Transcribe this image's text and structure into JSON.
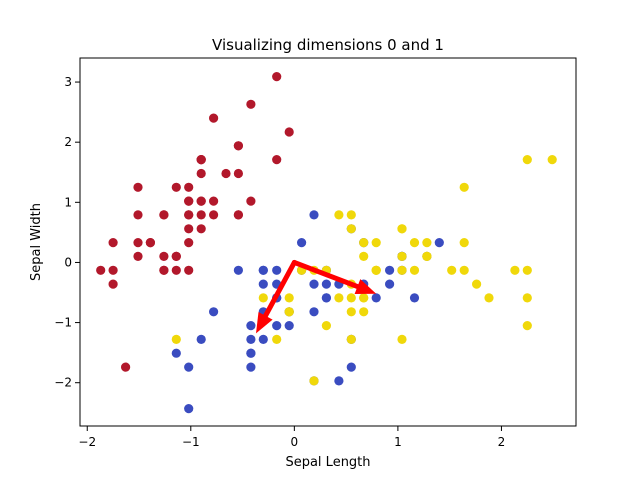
{
  "chart_data": {
    "type": "scatter",
    "title": "Visualizing dimensions 0 and 1",
    "xlabel": "Sepal Length",
    "ylabel": "Sepal Width",
    "xlim": [
      -2.07,
      2.72
    ],
    "ylim": [
      -2.72,
      3.4
    ],
    "xticks": [
      -2,
      -1,
      0,
      1,
      2
    ],
    "yticks": [
      -2,
      -1,
      0,
      1,
      2,
      3
    ],
    "grid": false,
    "legend": "none",
    "series": [
      {
        "color": "#b2182b",
        "points": [
          [
            -0.9,
            1.02
          ],
          [
            -1.14,
            -0.13
          ],
          [
            -1.39,
            0.33
          ],
          [
            -1.51,
            0.1
          ],
          [
            -1.02,
            1.25
          ],
          [
            -0.54,
            1.94
          ],
          [
            -1.51,
            0.79
          ],
          [
            -1.02,
            0.79
          ],
          [
            -1.75,
            -0.36
          ],
          [
            -1.14,
            0.1
          ],
          [
            -0.54,
            1.48
          ],
          [
            -1.26,
            0.79
          ],
          [
            -1.26,
            -0.13
          ],
          [
            -1.87,
            -0.13
          ],
          [
            -0.05,
            2.17
          ],
          [
            -0.17,
            3.09
          ],
          [
            -0.54,
            1.94
          ],
          [
            -0.9,
            1.02
          ],
          [
            -0.17,
            1.71
          ],
          [
            -0.9,
            1.71
          ],
          [
            -0.54,
            0.79
          ],
          [
            -0.9,
            1.48
          ],
          [
            -1.51,
            1.25
          ],
          [
            -0.9,
            0.56
          ],
          [
            -1.26,
            0.79
          ],
          [
            -1.02,
            -0.13
          ],
          [
            -1.02,
            0.79
          ],
          [
            -0.78,
            1.02
          ],
          [
            -0.78,
            0.79
          ],
          [
            -1.39,
            0.33
          ],
          [
            -1.26,
            0.1
          ],
          [
            -0.54,
            0.79
          ],
          [
            -0.78,
            2.4
          ],
          [
            -0.42,
            2.63
          ],
          [
            -1.14,
            0.1
          ],
          [
            -1.02,
            0.33
          ],
          [
            -0.42,
            1.02
          ],
          [
            -1.14,
            1.25
          ],
          [
            -1.75,
            -0.13
          ],
          [
            -0.9,
            0.79
          ],
          [
            -1.02,
            1.02
          ],
          [
            -1.63,
            -1.74
          ],
          [
            -1.75,
            0.33
          ],
          [
            -1.02,
            1.02
          ],
          [
            -0.9,
            1.71
          ],
          [
            -1.26,
            -0.13
          ],
          [
            -0.9,
            1.71
          ],
          [
            -1.51,
            0.33
          ],
          [
            -0.66,
            1.48
          ],
          [
            -1.02,
            0.56
          ]
        ]
      },
      {
        "color": "#3a4cc0",
        "points": [
          [
            1.4,
            0.33
          ],
          [
            0.67,
            0.33
          ],
          [
            1.28,
            0.1
          ],
          [
            -0.42,
            -1.74
          ],
          [
            0.79,
            -0.59
          ],
          [
            -0.17,
            -0.59
          ],
          [
            0.55,
            0.56
          ],
          [
            -1.14,
            -1.51
          ],
          [
            0.92,
            -0.36
          ],
          [
            -0.78,
            -0.82
          ],
          [
            -1.02,
            -2.43
          ],
          [
            0.07,
            -0.13
          ],
          [
            0.19,
            -1.97
          ],
          [
            0.31,
            -0.36
          ],
          [
            -0.3,
            -0.36
          ],
          [
            1.04,
            0.1
          ],
          [
            -0.3,
            -0.13
          ],
          [
            -0.05,
            -0.82
          ],
          [
            0.43,
            -1.97
          ],
          [
            -0.3,
            -1.28
          ],
          [
            0.07,
            0.33
          ],
          [
            0.31,
            -0.59
          ],
          [
            0.55,
            -1.28
          ],
          [
            0.31,
            -0.59
          ],
          [
            0.67,
            -0.36
          ],
          [
            0.92,
            -0.13
          ],
          [
            1.16,
            -0.59
          ],
          [
            1.04,
            -0.13
          ],
          [
            0.19,
            -0.36
          ],
          [
            -0.17,
            -1.05
          ],
          [
            -0.42,
            -1.51
          ],
          [
            -0.42,
            -1.51
          ],
          [
            -0.05,
            -0.82
          ],
          [
            0.19,
            -0.82
          ],
          [
            -0.54,
            -0.13
          ],
          [
            0.19,
            0.79
          ],
          [
            1.04,
            0.1
          ],
          [
            0.55,
            -1.74
          ],
          [
            -0.3,
            -0.13
          ],
          [
            -0.42,
            -1.28
          ],
          [
            -0.42,
            -1.05
          ],
          [
            0.31,
            -0.13
          ],
          [
            -0.05,
            -1.05
          ],
          [
            -1.02,
            -1.74
          ],
          [
            -0.3,
            -0.82
          ],
          [
            -0.17,
            -0.13
          ],
          [
            -0.17,
            -0.36
          ],
          [
            0.43,
            -0.36
          ],
          [
            -0.9,
            -1.28
          ],
          [
            -0.17,
            -0.59
          ]
        ]
      },
      {
        "color": "#f0d80a",
        "points": [
          [
            0.55,
            0.56
          ],
          [
            -0.05,
            -0.82
          ],
          [
            1.52,
            -0.13
          ],
          [
            0.55,
            -0.36
          ],
          [
            0.79,
            -0.13
          ],
          [
            2.13,
            -0.13
          ],
          [
            -1.14,
            -1.28
          ],
          [
            1.76,
            -0.36
          ],
          [
            1.04,
            -1.28
          ],
          [
            1.64,
            1.25
          ],
          [
            0.79,
            0.33
          ],
          [
            0.67,
            -0.82
          ],
          [
            1.16,
            -0.13
          ],
          [
            -0.17,
            -1.28
          ],
          [
            -0.05,
            -0.59
          ],
          [
            0.67,
            0.33
          ],
          [
            0.79,
            -0.13
          ],
          [
            2.25,
            1.71
          ],
          [
            2.25,
            -1.05
          ],
          [
            0.19,
            -1.97
          ],
          [
            1.28,
            0.33
          ],
          [
            -0.3,
            -0.59
          ],
          [
            2.25,
            -0.59
          ],
          [
            0.55,
            -0.82
          ],
          [
            1.04,
            0.56
          ],
          [
            1.64,
            0.33
          ],
          [
            0.43,
            -0.59
          ],
          [
            0.31,
            -0.13
          ],
          [
            0.67,
            -0.59
          ],
          [
            1.64,
            -0.13
          ],
          [
            1.88,
            -0.59
          ],
          [
            2.49,
            1.71
          ],
          [
            0.67,
            -0.59
          ],
          [
            0.55,
            -0.59
          ],
          [
            0.31,
            -1.05
          ],
          [
            2.25,
            -0.13
          ],
          [
            0.55,
            0.79
          ],
          [
            0.67,
            0.1
          ],
          [
            0.19,
            -0.13
          ],
          [
            1.28,
            0.1
          ],
          [
            1.04,
            0.1
          ],
          [
            1.28,
            0.1
          ],
          [
            -0.05,
            -0.82
          ],
          [
            1.16,
            0.33
          ],
          [
            1.04,
            0.56
          ],
          [
            1.04,
            -0.13
          ],
          [
            0.55,
            -1.28
          ],
          [
            0.79,
            -0.13
          ],
          [
            0.43,
            0.79
          ],
          [
            0.07,
            -0.13
          ]
        ]
      }
    ],
    "vectors": {
      "color": "#ff0000",
      "origin": [
        0,
        0
      ],
      "ends": [
        [
          0.79,
          -0.52
        ],
        [
          -0.37,
          -1.18
        ]
      ]
    }
  }
}
